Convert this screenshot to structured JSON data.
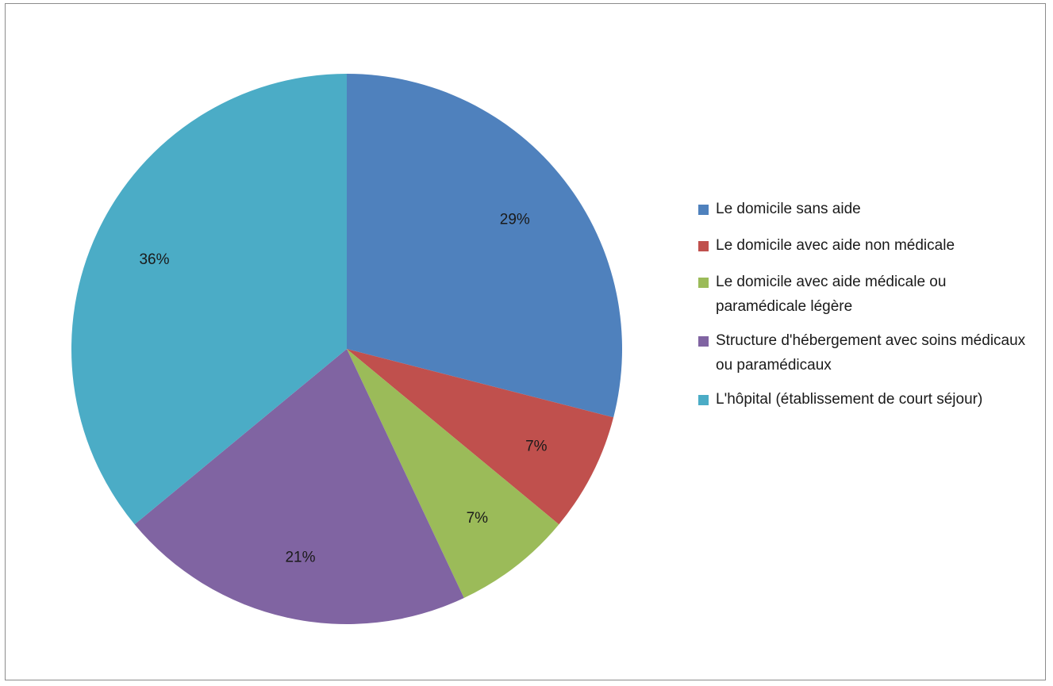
{
  "chart_data": {
    "type": "pie",
    "title": "",
    "start_angle_deg": 0,
    "direction": "clockwise",
    "legend_position": "right",
    "slices": [
      {
        "label": "Le domicile sans aide",
        "value": 29,
        "display": "29%",
        "color": "#4F81BD"
      },
      {
        "label": "Le domicile avec aide non médicale",
        "value": 7,
        "display": "7%",
        "color": "#C0504D"
      },
      {
        "label": "Le domicile avec aide médicale ou paramédicale légère",
        "value": 7,
        "display": "7%",
        "color": "#9BBB59"
      },
      {
        "label": "Structure d'hébergement avec soins médicaux ou paramédicaux",
        "value": 21,
        "display": "21%",
        "color": "#8064A2"
      },
      {
        "label": "L'hôpital (établissement de court séjour)",
        "value": 36,
        "display": "36%",
        "color": "#4BACC6"
      }
    ]
  }
}
